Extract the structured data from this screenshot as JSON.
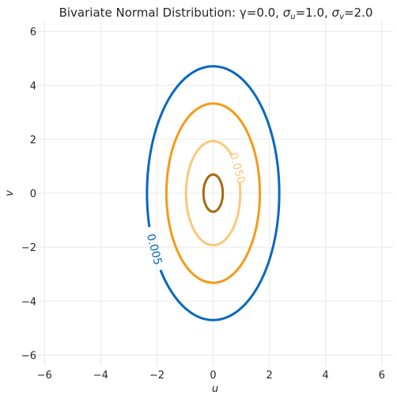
{
  "chart_data": {
    "type": "contour",
    "title": "Bivariate Normal Distribution: γ=0.0, σu=1.0, σv=2.0",
    "title_parts": {
      "prefix": "Bivariate Normal Distribution: γ=0.0, ",
      "sigma": "σ",
      "sub_u": "u",
      "mid_u": "=1.0, ",
      "sub_v": "v",
      "mid_v": "=2.0"
    },
    "xlabel": "u",
    "ylabel": "v",
    "xlim": [
      -6.4,
      6.4
    ],
    "ylim": [
      -6.4,
      6.4
    ],
    "xticks": [
      -6,
      -4,
      -2,
      0,
      2,
      4,
      6
    ],
    "yticks": [
      -6,
      -4,
      -2,
      0,
      2,
      4,
      6
    ],
    "xtick_labels": [
      "−6",
      "−4",
      "−2",
      "0",
      "2",
      "4",
      "6"
    ],
    "ytick_labels": [
      "−6",
      "−4",
      "−2",
      "0",
      "2",
      "4",
      "6"
    ],
    "grid": true,
    "parameters": {
      "gamma": 0.0,
      "sigma_u": 1.0,
      "sigma_v": 2.0
    },
    "levels": [
      {
        "value": 0.005,
        "color": "#0868c0",
        "labeled": true,
        "label": "0.005"
      },
      {
        "value": 0.02,
        "color": "#f59a17",
        "labeled": false,
        "label": ""
      },
      {
        "value": 0.05,
        "color": "#fbc87a",
        "labeled": true,
        "label": "0.050"
      },
      {
        "value": 0.075,
        "color": "#a8690f",
        "labeled": false,
        "label": ""
      }
    ]
  }
}
